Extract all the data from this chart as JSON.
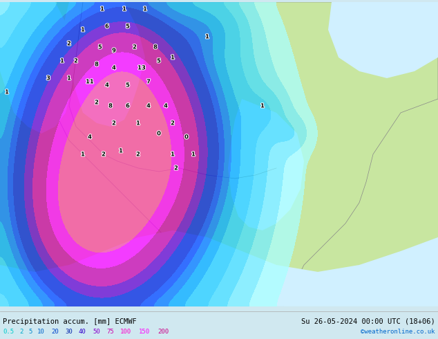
{
  "title_left": "Precipitation accum. [mm] ECMWF",
  "title_right": "Su 26-05-2024 00:00 UTC (18+06)",
  "watermark": "©weatheronline.co.uk",
  "legend_values": [
    "0.5",
    "2",
    "5",
    "10",
    "20",
    "30",
    "40",
    "50",
    "75",
    "100",
    "150",
    "200"
  ],
  "legend_colors": [
    "#00ffff",
    "#00ddff",
    "#00bbff",
    "#0099ff",
    "#0077ff",
    "#0055ff",
    "#3333ff",
    "#6600ff",
    "#9900cc",
    "#cc0099",
    "#ff00ff",
    "#ff00aa"
  ],
  "background_map_color": "#c8e6a0",
  "sea_color": "#d0f0ff",
  "border_color": "#888888",
  "bottom_bar_color": "#e8e8e8",
  "fig_width": 6.34,
  "fig_height": 4.9,
  "dpi": 100
}
